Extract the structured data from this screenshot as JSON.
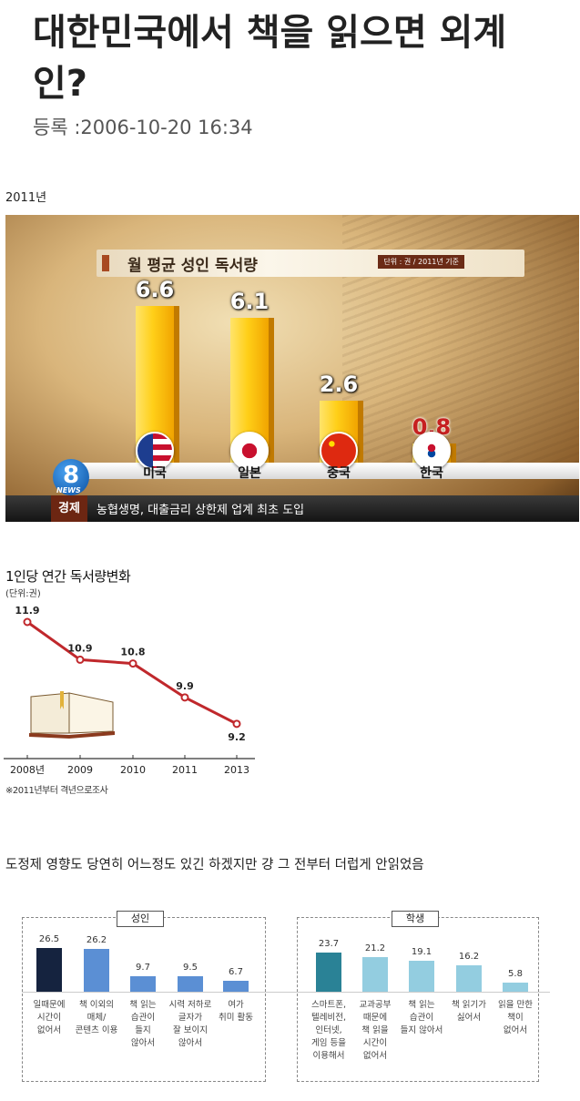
{
  "article": {
    "title": "대한민국에서 책을 읽으면 외계인?",
    "meta": "등록 :2006-10-20 16:34"
  },
  "year_caption": "2011년",
  "tv_broadcast": {
    "banner_title": "월 평균 성인 독서량",
    "banner_unit": "단위 : 권 / 2011년 기준",
    "channel_logo": "8",
    "channel_logo_sub": "NEWS",
    "ticker_category": "경제",
    "ticker_text": "농협생명, 대출금리 상한제 업계 최초 도입",
    "colors": {
      "bar": "#ffcf18",
      "highlight_value": "#c62020",
      "ticker_category_bg": "#6c2612"
    },
    "chart_data": {
      "type": "bar",
      "title": "월 평균 성인 독서량",
      "categories": [
        "미국",
        "일본",
        "중국",
        "한국"
      ],
      "values": [
        6.6,
        6.1,
        2.6,
        0.8
      ],
      "value_labels": [
        "6.6",
        "6.1",
        "2.6",
        "0.8"
      ],
      "flags": [
        "us-flag-icon",
        "japan-flag-icon",
        "china-flag-icon",
        "korea-flag-icon"
      ],
      "ylim": [
        0,
        7
      ],
      "grid": false
    }
  },
  "line_chart": {
    "title": "1인당 연간 독서량변화",
    "unit": "(단위:권)",
    "footnote": "※2011년부터 격년으로조사",
    "colors": {
      "line": "#c0282c",
      "marker": "#ffffff",
      "axis": "#333333"
    },
    "icon": "open-book-icon",
    "chart_data": {
      "type": "line",
      "title": "1인당 연간 독서량변화",
      "x": [
        "2008년",
        "2009",
        "2010",
        "2011",
        "2013"
      ],
      "values": [
        11.9,
        10.9,
        10.8,
        9.9,
        9.2
      ],
      "value_labels": [
        "11.9",
        "10.9",
        "10.8",
        "9.9",
        "9.2"
      ],
      "ylim": [
        9,
        12
      ],
      "grid": false
    }
  },
  "comment": "도정제 영향도 당연히 어느정도 있긴 하겠지만 걍 그 전부터 더럽게 안읽었음",
  "survey": {
    "colors": {
      "adult_first": "#15233f",
      "adult": "#5b8fd4",
      "student_first": "#2a8296",
      "student": "#93cde0"
    },
    "chart_data": [
      {
        "type": "bar",
        "title": "성인",
        "categories": [
          "일때문에\n시간이\n없어서",
          "책 이외의\n매체/\n콘텐츠 이용",
          "책 읽는\n습관이\n들지\n않아서",
          "시력 저하로\n글자가\n잘 보이지\n않아서",
          "여가\n취미 활동"
        ],
        "values": [
          26.5,
          26.2,
          9.7,
          9.5,
          6.7
        ],
        "value_labels": [
          "26.5",
          "26.2",
          "9.7",
          "9.5",
          "6.7"
        ],
        "ylim": [
          0,
          30
        ]
      },
      {
        "type": "bar",
        "title": "학생",
        "categories": [
          "스마트폰,\n텔레비전,\n인터넷,\n게임 등을\n이용해서",
          "교과공부\n때문에\n책 읽을\n시간이\n없어서",
          "책 읽는\n습관이\n들지 않아서",
          "책 읽기가\n싫어서",
          "읽을 만한\n책이\n없어서"
        ],
        "values": [
          23.7,
          21.2,
          19.1,
          16.2,
          5.8
        ],
        "value_labels": [
          "23.7",
          "21.2",
          "19.1",
          "16.2",
          "5.8"
        ],
        "ylim": [
          0,
          30
        ]
      }
    ]
  }
}
